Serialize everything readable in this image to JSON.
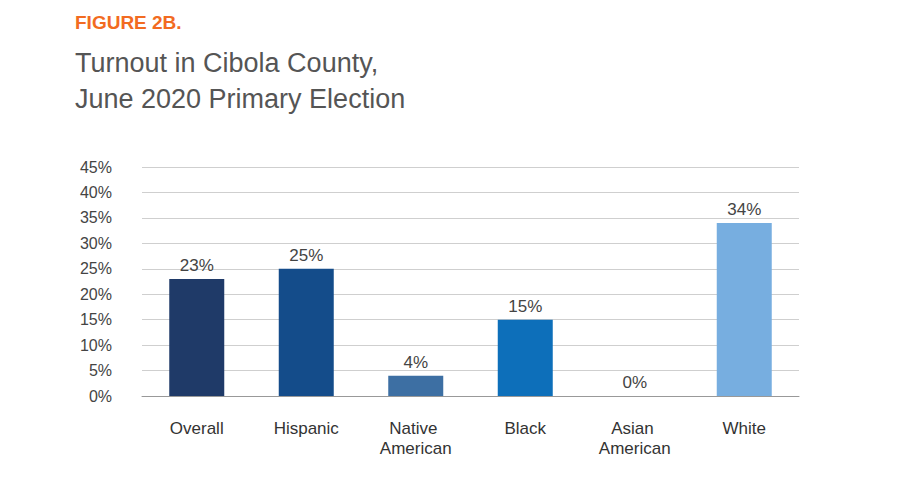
{
  "chart_data": {
    "type": "bar",
    "figure_label": "FIGURE 2B.",
    "title": "Turnout in Cibola County, June 2020 Primary Election",
    "categories": [
      "Overall",
      "Hispanic",
      "Native American",
      "Black",
      "Asian American",
      "White"
    ],
    "values": [
      23,
      25,
      4,
      15,
      0,
      34
    ],
    "value_labels": [
      "23%",
      "25%",
      "4%",
      "15%",
      "0%",
      "34%"
    ],
    "colors": [
      "#1f3a68",
      "#144c8a",
      "#3d6fa3",
      "#0d6fba",
      "#2a7fc0",
      "#77aee0"
    ],
    "ylim": [
      0,
      45
    ],
    "yticks": [
      {
        "value": 0,
        "label": "0%"
      },
      {
        "value": 5,
        "label": "5%"
      },
      {
        "value": 10,
        "label": "10%"
      },
      {
        "value": 15,
        "label": "15%"
      },
      {
        "value": 20,
        "label": "20%"
      },
      {
        "value": 25,
        "label": "25%"
      },
      {
        "value": 30,
        "label": "30%"
      },
      {
        "value": 35,
        "label": "35%"
      },
      {
        "value": 40,
        "label": "40%"
      },
      {
        "value": 45,
        "label": "45%"
      }
    ],
    "grid": true,
    "data_labels": true
  }
}
